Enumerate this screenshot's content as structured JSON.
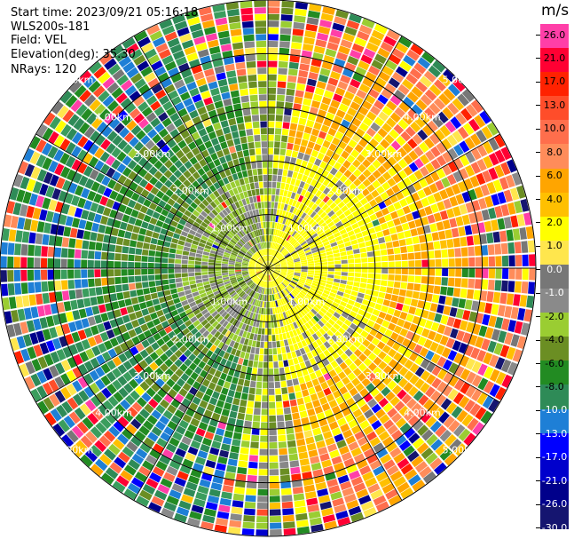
{
  "header": {
    "start_time": "Start time: 2023/09/21 05:16:18",
    "instrument": "WLS200s-181",
    "field": "Field: VEL",
    "elevation": "Elevation(deg): 35.30",
    "nrays": "NRays: 120"
  },
  "colorbar": {
    "unit": "m/s",
    "ticks": [
      "26.0",
      "21.0",
      "17.0",
      "13.0",
      "10.0",
      "8.0",
      "6.0",
      "4.0",
      "2.0",
      "1.0",
      "0.0",
      "-1.0",
      "-2.0",
      "-4.0",
      "-6.0",
      "-8.0",
      "-10.0",
      "-13.0",
      "-17.0",
      "-21.0",
      "-26.0",
      "-30.0"
    ],
    "colors": [
      "#ff3fa8",
      "#ff0033",
      "#ff2200",
      "#ff4d2a",
      "#ff6e4c",
      "#ff8c5a",
      "#ffa500",
      "#ffc000",
      "#ffff00",
      "#ffe64d",
      "#777777",
      "#8a8a8a",
      "#9acd32",
      "#6b8e23",
      "#228b22",
      "#2e8b57",
      "#1e7fd6",
      "#0000ff",
      "#0000cc",
      "#00008b",
      "#151570"
    ]
  },
  "plot": {
    "range_rings": [
      "1.00km",
      "2.00km",
      "3.00km",
      "4.00km",
      "5.00km"
    ],
    "num_rays": 120
  }
}
